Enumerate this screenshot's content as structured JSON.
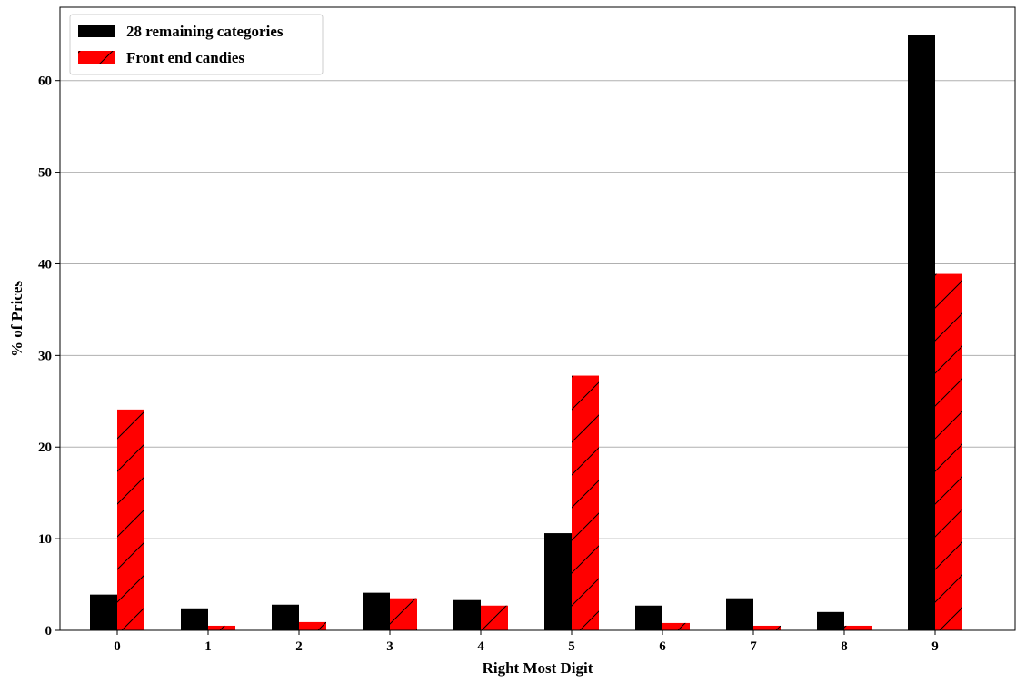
{
  "chart_data": {
    "type": "bar",
    "title": "",
    "xlabel": "Right Most Digit",
    "ylabel": "% of Prices",
    "categories": [
      "0",
      "1",
      "2",
      "3",
      "4",
      "5",
      "6",
      "7",
      "8",
      "9"
    ],
    "ylim": [
      0,
      68
    ],
    "yticks": [
      0,
      10,
      20,
      30,
      40,
      50,
      60
    ],
    "grid": "horizontal",
    "legend_position": "top-left",
    "series": [
      {
        "name": "28 remaining categories",
        "color": "#000000",
        "hatch": "none",
        "values": [
          3.9,
          2.4,
          2.8,
          4.1,
          3.3,
          10.6,
          2.7,
          3.5,
          2.0,
          65.0
        ]
      },
      {
        "name": "Front end candies",
        "color": "#ff0000",
        "hatch": "diagonal",
        "values": [
          24.1,
          0.5,
          0.9,
          3.5,
          2.7,
          27.8,
          0.8,
          0.5,
          0.5,
          38.9
        ]
      }
    ]
  }
}
